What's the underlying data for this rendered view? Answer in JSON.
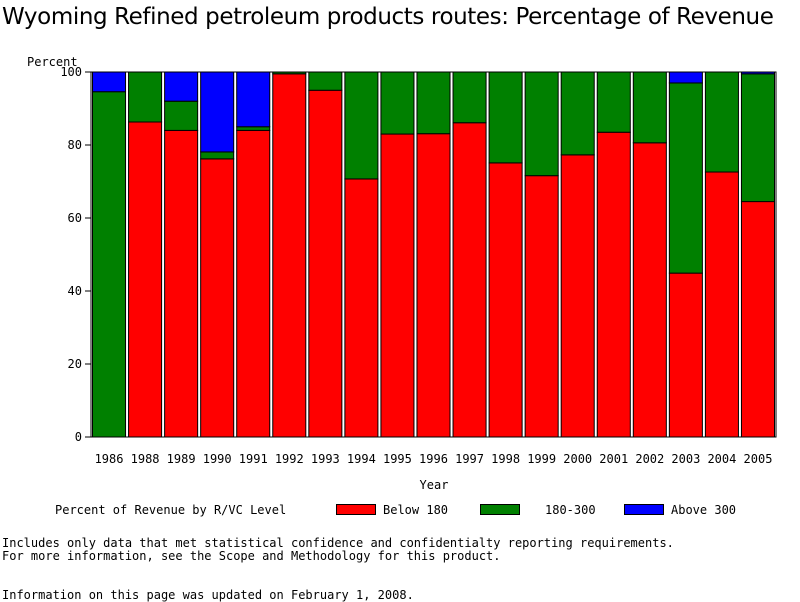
{
  "title": "Wyoming Refined petroleum products routes: Percentage of Revenue",
  "colors": {
    "below_180": "#ff0000",
    "r180_300": "#008000",
    "above_300": "#0000ff"
  },
  "legend": {
    "title": "Percent of Revenue by R/VC Level",
    "items": [
      "Below 180",
      "180-300",
      "Above 300"
    ]
  },
  "footnotes": {
    "line1": "Includes only data that met statistical confidence and confidentialty reporting requirements.",
    "line2": "For more information, see the Scope and Methodology for this product.",
    "updated": "Information on this page was updated on February 1, 2008."
  },
  "chart_data": {
    "type": "bar",
    "stacked": true,
    "title": "Wyoming Refined petroleum products routes: Percentage of Revenue",
    "xlabel": "Year",
    "ylabel": "Percent",
    "ylim": [
      0,
      100
    ],
    "yticks": [
      0,
      20,
      40,
      60,
      80,
      100
    ],
    "legend_position": "bottom",
    "categories": [
      "1986",
      "1988",
      "1989",
      "1990",
      "1991",
      "1992",
      "1993",
      "1994",
      "1995",
      "1996",
      "1997",
      "1998",
      "1999",
      "2000",
      "2001",
      "2002",
      "2003",
      "2004",
      "2005"
    ],
    "series": [
      {
        "name": "Below 180",
        "color": "#ff0000",
        "values": [
          0,
          86.3,
          84,
          76.2,
          84,
          99.5,
          95,
          70.7,
          83,
          83.1,
          86.1,
          75.1,
          71.6,
          77.3,
          83.5,
          80.6,
          44.9,
          72.6,
          64.5
        ]
      },
      {
        "name": "180-300",
        "color": "#008000",
        "values": [
          94.6,
          13.7,
          8,
          1.9,
          1,
          0.5,
          5,
          29.3,
          17,
          16.9,
          13.9,
          24.9,
          28.4,
          22.7,
          16.5,
          19.4,
          52.1,
          27.4,
          35
        ]
      },
      {
        "name": "Above 300",
        "color": "#0000ff",
        "values": [
          5.4,
          0,
          8,
          21.9,
          15,
          0,
          0,
          0,
          0,
          0,
          0,
          0,
          0,
          0,
          0,
          0,
          3,
          0,
          0.5
        ]
      }
    ]
  }
}
